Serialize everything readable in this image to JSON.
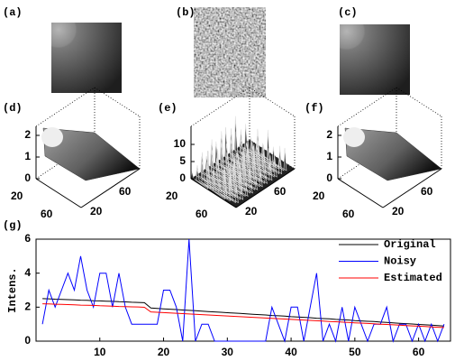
{
  "panels": [
    {
      "label": "(a)"
    },
    {
      "label": "(b)"
    },
    {
      "label": "(c)"
    }
  ],
  "surfaces": [
    {
      "label": "(d)",
      "zticks": [
        0,
        1,
        2
      ],
      "xticks": [
        20,
        60
      ],
      "yticks": [
        20,
        60
      ]
    },
    {
      "label": "(e)",
      "zticks": [
        0,
        5,
        10
      ],
      "xticks": [
        20,
        60
      ],
      "yticks": [
        20,
        60
      ]
    },
    {
      "label": "(f)",
      "zticks": [
        0,
        1,
        2
      ],
      "xticks": [
        20,
        60
      ],
      "yticks": [
        20,
        60
      ]
    }
  ],
  "chart_data": {
    "type": "line",
    "label": "(g)",
    "ylabel": "Intens.",
    "x": [
      1,
      2,
      3,
      4,
      5,
      6,
      7,
      8,
      9,
      10,
      11,
      12,
      13,
      14,
      15,
      16,
      17,
      18,
      19,
      20,
      21,
      22,
      23,
      24,
      25,
      26,
      27,
      28,
      29,
      30,
      31,
      32,
      33,
      34,
      35,
      36,
      37,
      38,
      39,
      40,
      41,
      42,
      43,
      44,
      45,
      46,
      47,
      48,
      49,
      50,
      51,
      52,
      53,
      54,
      55,
      56,
      57,
      58,
      59,
      60,
      61,
      62,
      63,
      64
    ],
    "series": [
      {
        "name": "Original",
        "color": "#000000",
        "values": [
          2.5,
          2.49,
          2.47,
          2.46,
          2.44,
          2.43,
          2.41,
          2.4,
          2.38,
          2.37,
          2.35,
          2.34,
          2.32,
          2.31,
          2.29,
          2.28,
          2.26,
          1.95,
          1.93,
          1.9,
          1.88,
          1.86,
          1.83,
          1.81,
          1.79,
          1.77,
          1.74,
          1.72,
          1.7,
          1.67,
          1.65,
          1.63,
          1.61,
          1.58,
          1.56,
          1.54,
          1.51,
          1.49,
          1.47,
          1.44,
          1.42,
          1.4,
          1.38,
          1.35,
          1.33,
          1.31,
          1.28,
          1.26,
          1.24,
          1.21,
          1.19,
          1.17,
          1.15,
          1.12,
          1.1,
          1.08,
          1.05,
          1.03,
          1.01,
          0.98,
          0.96,
          0.94,
          0.92,
          0.89
        ]
      },
      {
        "name": "Noisy",
        "color": "#0000ff",
        "values": [
          1,
          3,
          2,
          3,
          4,
          3,
          5,
          3,
          2,
          4,
          4,
          2,
          4,
          2,
          1,
          1,
          1,
          1,
          1,
          3,
          3,
          2,
          0,
          6,
          0,
          1,
          1,
          0,
          0,
          0,
          0,
          0,
          0,
          0,
          0,
          0,
          2,
          1,
          0,
          2,
          2,
          0,
          2,
          4,
          0,
          1,
          0,
          2,
          0,
          2,
          1,
          0,
          1,
          1,
          2,
          0,
          1,
          1,
          0,
          1,
          0,
          1,
          0,
          1
        ]
      },
      {
        "name": "Estimated",
        "color": "#ff0000",
        "values": [
          2.2,
          2.19,
          2.17,
          2.16,
          2.15,
          2.14,
          2.12,
          2.11,
          2.1,
          2.08,
          2.07,
          2.06,
          2.04,
          2.03,
          2.02,
          2.01,
          1.99,
          1.72,
          1.7,
          1.68,
          1.66,
          1.64,
          1.62,
          1.6,
          1.58,
          1.56,
          1.54,
          1.52,
          1.5,
          1.48,
          1.46,
          1.44,
          1.42,
          1.4,
          1.38,
          1.36,
          1.34,
          1.32,
          1.3,
          1.28,
          1.26,
          1.24,
          1.22,
          1.2,
          1.18,
          1.16,
          1.14,
          1.12,
          1.1,
          1.08,
          1.06,
          1.04,
          1.02,
          1.0,
          0.98,
          0.96,
          0.94,
          0.92,
          0.9,
          0.88,
          0.86,
          0.84,
          0.82,
          0.8
        ]
      }
    ],
    "xlim": [
      0,
      65
    ],
    "xticks": [
      10,
      20,
      30,
      40,
      50,
      60
    ],
    "ylim": [
      0,
      6
    ],
    "yticks": [
      0,
      2,
      4,
      6
    ],
    "legend": "top-right"
  }
}
